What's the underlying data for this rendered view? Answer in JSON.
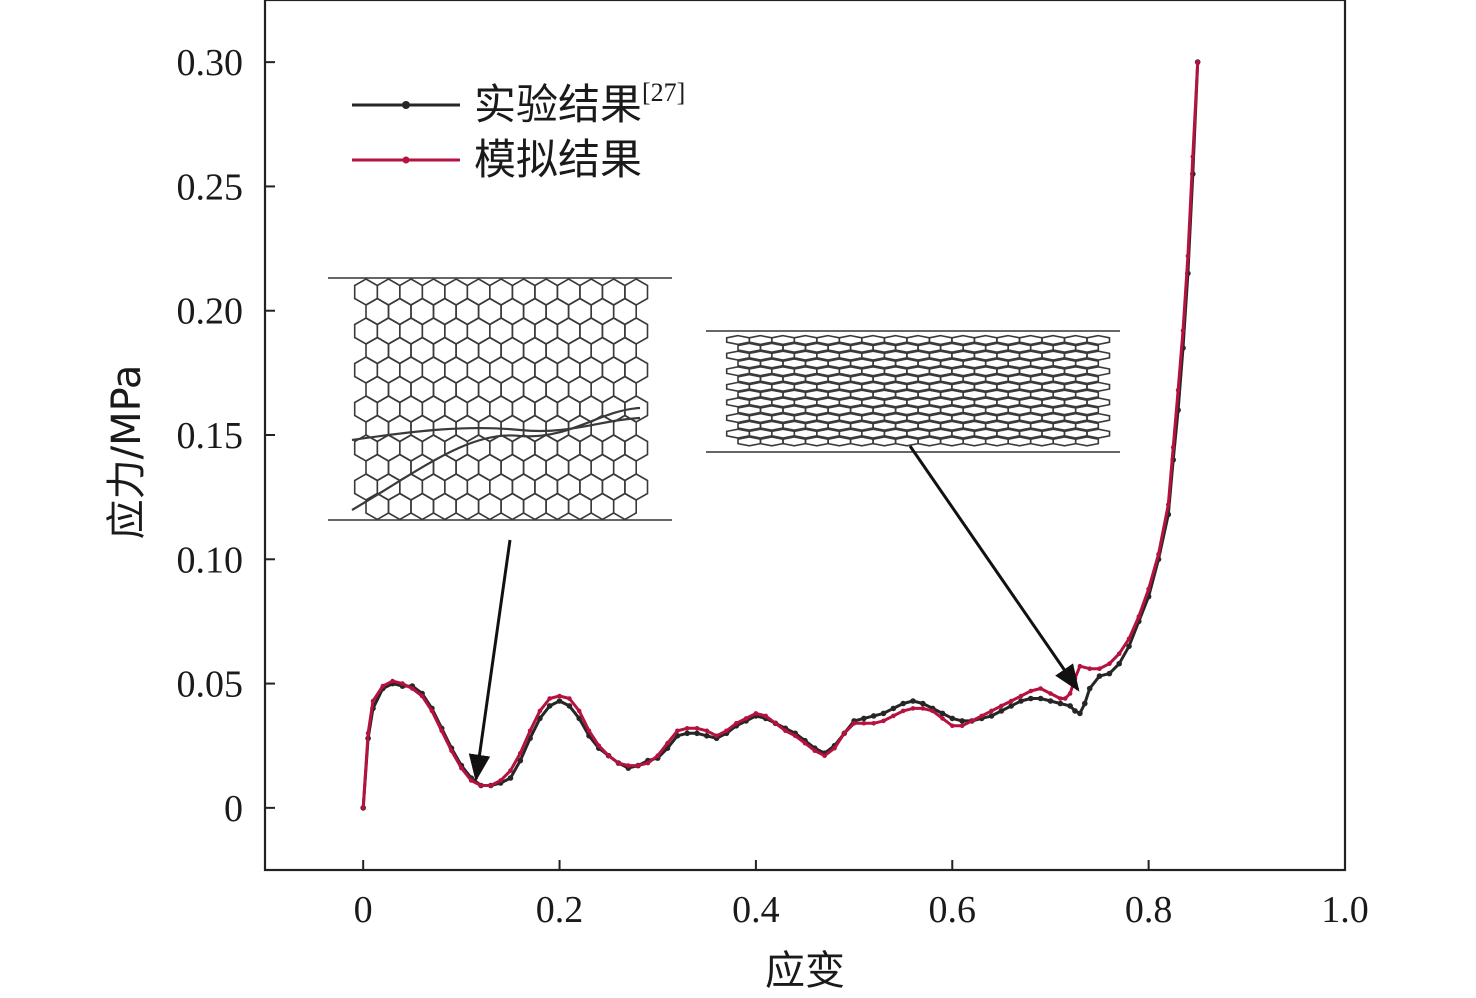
{
  "chart_data": {
    "type": "line",
    "xlabel": "应变",
    "ylabel": "应力/MPa",
    "xlim": [
      -0.1,
      1.0
    ],
    "ylim": [
      -0.025,
      0.325
    ],
    "xticks": [
      0,
      0.2,
      0.4,
      0.6,
      0.8,
      1.0
    ],
    "xtick_labels": [
      "0",
      "0.2",
      "0.4",
      "0.6",
      "0.8",
      "1.0"
    ],
    "yticks": [
      0,
      0.05,
      0.1,
      0.15,
      0.2,
      0.25,
      0.3
    ],
    "ytick_labels": [
      "0",
      "0.05",
      "0.10",
      "0.15",
      "0.20",
      "0.25",
      "0.30"
    ],
    "legend_position": "top-left",
    "series": [
      {
        "name": "实验结果",
        "name_sup": "[27]",
        "color": "#262626",
        "x": [
          0.0,
          0.005,
          0.01,
          0.02,
          0.03,
          0.04,
          0.05,
          0.06,
          0.07,
          0.08,
          0.09,
          0.1,
          0.11,
          0.12,
          0.13,
          0.14,
          0.15,
          0.16,
          0.17,
          0.18,
          0.19,
          0.2,
          0.21,
          0.22,
          0.23,
          0.24,
          0.25,
          0.26,
          0.27,
          0.28,
          0.29,
          0.3,
          0.31,
          0.32,
          0.33,
          0.34,
          0.35,
          0.36,
          0.37,
          0.38,
          0.39,
          0.4,
          0.41,
          0.42,
          0.43,
          0.44,
          0.45,
          0.46,
          0.47,
          0.48,
          0.49,
          0.5,
          0.51,
          0.52,
          0.53,
          0.54,
          0.55,
          0.56,
          0.57,
          0.58,
          0.59,
          0.6,
          0.61,
          0.62,
          0.63,
          0.64,
          0.65,
          0.66,
          0.67,
          0.68,
          0.69,
          0.7,
          0.71,
          0.72,
          0.725,
          0.73,
          0.735,
          0.74,
          0.75,
          0.76,
          0.77,
          0.78,
          0.79,
          0.8,
          0.81,
          0.82,
          0.825,
          0.83,
          0.835,
          0.84,
          0.845,
          0.85
        ],
        "y": [
          0.0,
          0.028,
          0.04,
          0.048,
          0.05,
          0.049,
          0.049,
          0.046,
          0.04,
          0.032,
          0.024,
          0.017,
          0.012,
          0.009,
          0.009,
          0.01,
          0.012,
          0.019,
          0.028,
          0.036,
          0.041,
          0.043,
          0.041,
          0.036,
          0.029,
          0.024,
          0.021,
          0.018,
          0.016,
          0.017,
          0.019,
          0.02,
          0.024,
          0.029,
          0.03,
          0.03,
          0.029,
          0.028,
          0.03,
          0.033,
          0.035,
          0.037,
          0.036,
          0.034,
          0.032,
          0.03,
          0.027,
          0.024,
          0.022,
          0.025,
          0.03,
          0.035,
          0.036,
          0.037,
          0.038,
          0.04,
          0.042,
          0.043,
          0.042,
          0.04,
          0.038,
          0.036,
          0.035,
          0.035,
          0.036,
          0.037,
          0.039,
          0.041,
          0.043,
          0.044,
          0.044,
          0.043,
          0.042,
          0.041,
          0.039,
          0.038,
          0.042,
          0.048,
          0.053,
          0.054,
          0.058,
          0.065,
          0.075,
          0.085,
          0.1,
          0.118,
          0.14,
          0.16,
          0.185,
          0.215,
          0.255,
          0.3
        ]
      },
      {
        "name": "模拟结果",
        "color": "#b5123f",
        "x": [
          0.0,
          0.005,
          0.01,
          0.02,
          0.03,
          0.04,
          0.05,
          0.06,
          0.07,
          0.08,
          0.09,
          0.1,
          0.11,
          0.12,
          0.13,
          0.14,
          0.15,
          0.16,
          0.17,
          0.18,
          0.19,
          0.2,
          0.21,
          0.22,
          0.23,
          0.24,
          0.25,
          0.26,
          0.27,
          0.28,
          0.29,
          0.3,
          0.31,
          0.32,
          0.33,
          0.34,
          0.35,
          0.36,
          0.37,
          0.38,
          0.39,
          0.4,
          0.41,
          0.42,
          0.43,
          0.44,
          0.45,
          0.46,
          0.47,
          0.48,
          0.49,
          0.5,
          0.51,
          0.52,
          0.53,
          0.54,
          0.55,
          0.56,
          0.57,
          0.58,
          0.59,
          0.6,
          0.61,
          0.62,
          0.63,
          0.64,
          0.65,
          0.66,
          0.67,
          0.68,
          0.69,
          0.7,
          0.71,
          0.715,
          0.72,
          0.725,
          0.73,
          0.74,
          0.75,
          0.76,
          0.77,
          0.78,
          0.79,
          0.8,
          0.81,
          0.82,
          0.825,
          0.83,
          0.835,
          0.84,
          0.845,
          0.85
        ],
        "y": [
          0.0,
          0.03,
          0.043,
          0.049,
          0.051,
          0.05,
          0.048,
          0.045,
          0.039,
          0.031,
          0.023,
          0.016,
          0.011,
          0.009,
          0.009,
          0.011,
          0.015,
          0.022,
          0.031,
          0.039,
          0.044,
          0.045,
          0.044,
          0.039,
          0.031,
          0.025,
          0.021,
          0.018,
          0.017,
          0.017,
          0.018,
          0.021,
          0.026,
          0.031,
          0.032,
          0.032,
          0.031,
          0.029,
          0.031,
          0.034,
          0.036,
          0.038,
          0.037,
          0.034,
          0.031,
          0.029,
          0.026,
          0.023,
          0.021,
          0.024,
          0.03,
          0.034,
          0.034,
          0.034,
          0.035,
          0.037,
          0.039,
          0.04,
          0.04,
          0.039,
          0.036,
          0.033,
          0.033,
          0.035,
          0.037,
          0.039,
          0.041,
          0.043,
          0.045,
          0.047,
          0.048,
          0.046,
          0.044,
          0.044,
          0.046,
          0.052,
          0.057,
          0.056,
          0.056,
          0.058,
          0.062,
          0.068,
          0.077,
          0.088,
          0.102,
          0.122,
          0.145,
          0.168,
          0.192,
          0.222,
          0.262,
          0.3
        ]
      }
    ],
    "annotations": [
      {
        "type": "arrow",
        "target_x": 0.115,
        "target_y": 0.01
      },
      {
        "type": "arrow",
        "target_x": 0.728,
        "target_y": 0.046
      }
    ]
  }
}
